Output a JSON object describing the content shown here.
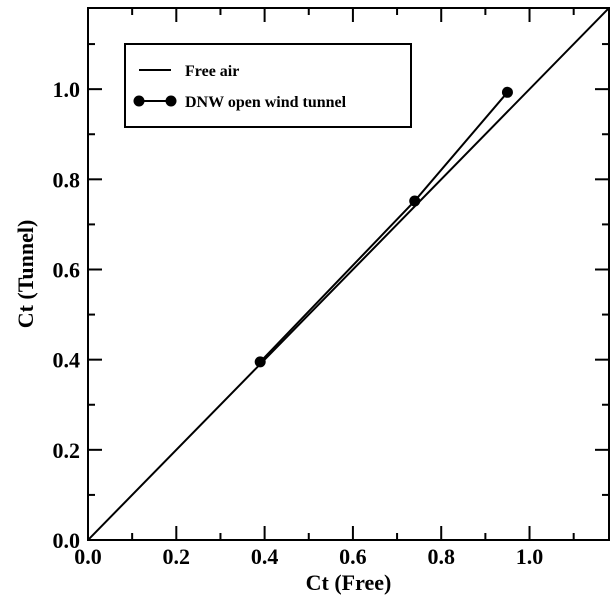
{
  "chart_data": {
    "type": "line",
    "title": "",
    "xlabel": "Ct (Free)",
    "ylabel": "Ct (Tunnel)",
    "xlim": [
      0.0,
      1.18
    ],
    "ylim": [
      0.0,
      1.18
    ],
    "x_ticks": [
      "0.0",
      "0.2",
      "0.4",
      "0.6",
      "0.8",
      "1.0"
    ],
    "y_ticks": [
      "0.0",
      "0.2",
      "0.4",
      "0.6",
      "0.8",
      "1.0"
    ],
    "x_tick_values": [
      0.0,
      0.2,
      0.4,
      0.6,
      0.8,
      1.0
    ],
    "y_tick_values": [
      0.0,
      0.2,
      0.4,
      0.6,
      0.8,
      1.0
    ],
    "grid": false,
    "legend_position": "top-left",
    "series": [
      {
        "name": "Free air",
        "marker": "none",
        "color": "#000000",
        "x": [
          0.0,
          1.18
        ],
        "y": [
          0.0,
          1.18
        ]
      },
      {
        "name": "DNW open wind tunnel",
        "marker": "circle",
        "color": "#000000",
        "x": [
          0.39,
          0.74,
          0.95
        ],
        "y": [
          0.395,
          0.752,
          0.993
        ]
      }
    ]
  }
}
